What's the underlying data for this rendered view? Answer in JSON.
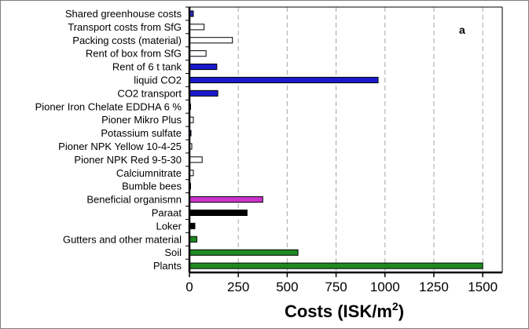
{
  "chart_data": {
    "type": "bar",
    "orientation": "horizontal",
    "panel_label": "a",
    "xlabel": "Costs (ISK/m",
    "xlabel_sup": "2",
    "xlabel_close": ")",
    "xlim": [
      0,
      1600
    ],
    "xticks": [
      "0",
      "250",
      "500",
      "750",
      "1000",
      "1250",
      "1500"
    ],
    "xtick_values": [
      0,
      250,
      500,
      750,
      1000,
      1250,
      1500
    ],
    "grid": "vertical-dashed",
    "categories": [
      "Shared greenhouse costs",
      "Transport costs from SfG",
      "Packing costs (material)",
      "Rent of box from SfG",
      "Rent of 6 t tank",
      "liquid CO2",
      "CO2 transport",
      "Pioner Iron Chelate EDDHA 6 %",
      "Pioner Mikro Plus",
      "Potassium sulfate",
      "Pioner NPK Yellow 10-4-25",
      "Pioner NPK Red 9-5-30",
      "Calciumnitrate",
      "Bumble bees",
      "Beneficial organismn",
      "Paraat",
      "Loker",
      "Gutters and other material",
      "Soil",
      "Plants"
    ],
    "values": [
      20,
      75,
      220,
      85,
      140,
      965,
      145,
      5,
      20,
      8,
      12,
      65,
      20,
      3,
      375,
      295,
      28,
      38,
      555,
      1500
    ],
    "colors": [
      "#2b2bbf",
      "#ffffff",
      "#ffffff",
      "#ffffff",
      "#1a1acc",
      "#1a1acc",
      "#1a1acc",
      "#1a1acc",
      "#ffffff",
      "#1a1acc",
      "#ffffff",
      "#ffffff",
      "#ffffff",
      "#ffffff",
      "#cc33cc",
      "#000000",
      "#000000",
      "#1f8a1f",
      "#1f8a1f",
      "#1f8a1f"
    ]
  }
}
